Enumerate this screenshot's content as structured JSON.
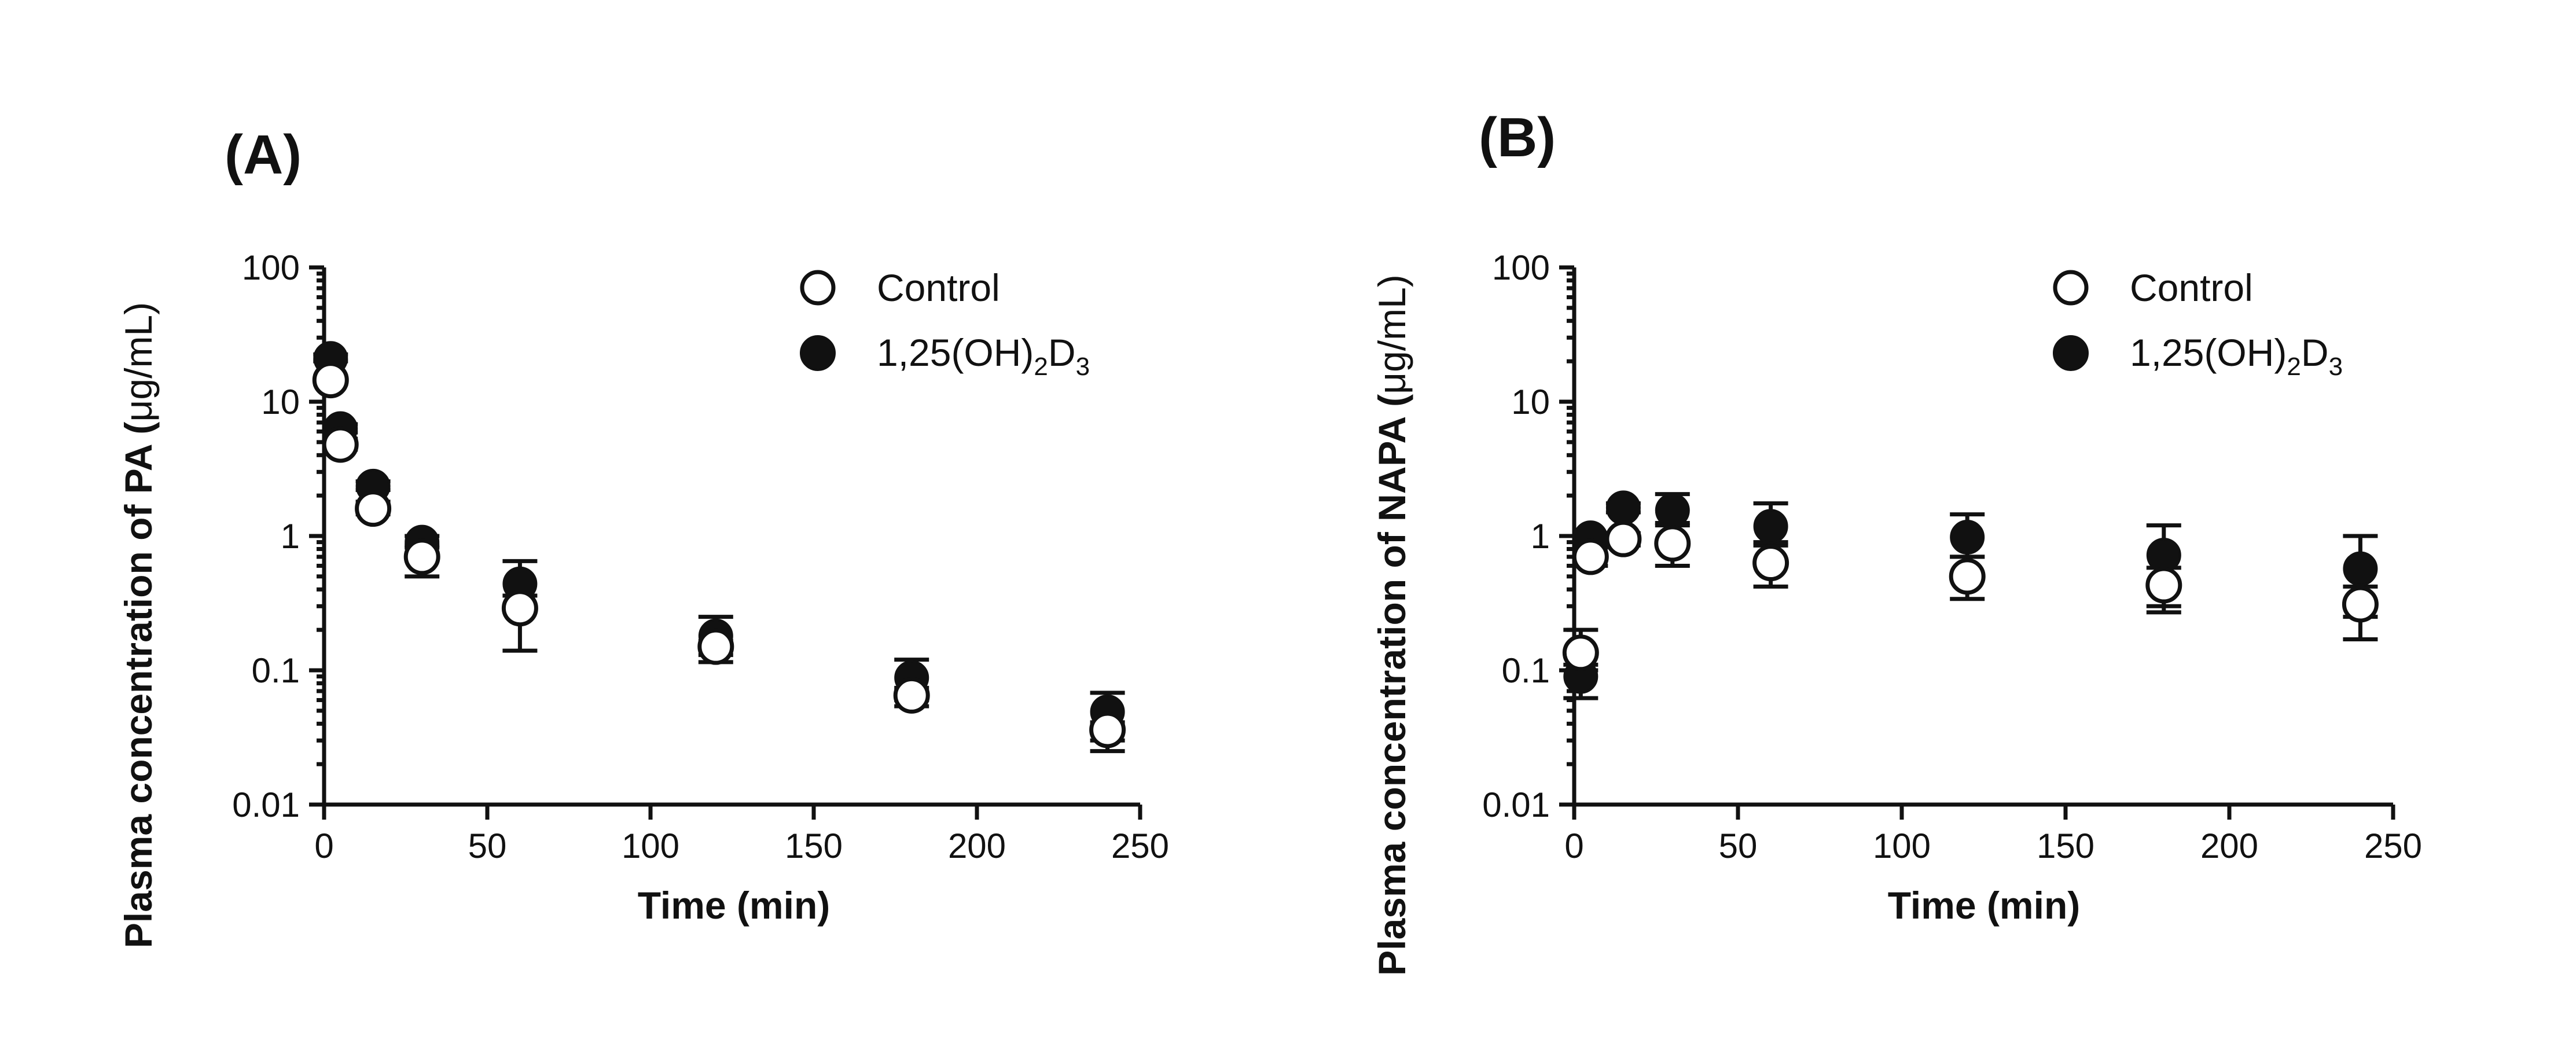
{
  "chart_data": [
    {
      "panel": "(A)",
      "type": "scatter",
      "yscale": "log",
      "xlabel": "Time (min)",
      "ylabel": "Plasma concentration of PA (",
      "ylabel_unit": "μg/mL)",
      "xlim": [
        0,
        250
      ],
      "ylim": [
        0.01,
        100
      ],
      "x_ticks": [
        "0",
        "50",
        "100",
        "150",
        "200",
        "250"
      ],
      "y_ticks": [
        "0.01",
        "0.1",
        "1",
        "10",
        "100"
      ],
      "legend_position": "top-right",
      "series": [
        {
          "name": "Control",
          "marker": "open-circle",
          "points": [
            {
              "x": 2,
              "y": 14.5,
              "err_low": 13.5,
              "err_high": 15.5
            },
            {
              "x": 5,
              "y": 4.8,
              "err_low": 4.4,
              "err_high": 5.3
            },
            {
              "x": 15,
              "y": 1.6,
              "err_low": 1.45,
              "err_high": 1.8
            },
            {
              "x": 30,
              "y": 0.7,
              "err_low": 0.5,
              "err_high": 0.85
            },
            {
              "x": 60,
              "y": 0.29,
              "err_low": 0.14,
              "err_high": 0.36
            },
            {
              "x": 120,
              "y": 0.15,
              "err_low": 0.115,
              "err_high": 0.165
            },
            {
              "x": 180,
              "y": 0.065,
              "err_low": 0.054,
              "err_high": 0.074
            },
            {
              "x": 240,
              "y": 0.036,
              "err_low": 0.025,
              "err_high": 0.041
            }
          ]
        },
        {
          "name": "1,25(OH)2D3",
          "marker": "filled-circle",
          "points": [
            {
              "x": 2,
              "y": 21,
              "err_low": 20,
              "err_high": 22.5
            },
            {
              "x": 5,
              "y": 6.3,
              "err_low": 5.9,
              "err_high": 6.8
            },
            {
              "x": 15,
              "y": 2.35,
              "err_low": 2.2,
              "err_high": 2.55
            },
            {
              "x": 30,
              "y": 0.9,
              "err_low": 0.82,
              "err_high": 1.0
            },
            {
              "x": 60,
              "y": 0.44,
              "err_low": 0.3,
              "err_high": 0.65
            },
            {
              "x": 120,
              "y": 0.18,
              "err_low": 0.13,
              "err_high": 0.25
            },
            {
              "x": 180,
              "y": 0.088,
              "err_low": 0.06,
              "err_high": 0.12
            },
            {
              "x": 240,
              "y": 0.049,
              "err_low": 0.03,
              "err_high": 0.068
            }
          ]
        }
      ]
    },
    {
      "panel": "(B)",
      "type": "scatter",
      "yscale": "log",
      "xlabel": "Time (min)",
      "ylabel": "Plasma concentration of NAPA (",
      "ylabel_unit": "μg/mL)",
      "xlim": [
        0,
        250
      ],
      "ylim": [
        0.01,
        100
      ],
      "x_ticks": [
        "0",
        "50",
        "100",
        "150",
        "200",
        "250"
      ],
      "y_ticks": [
        "0.01",
        "0.1",
        "1",
        "10",
        "100"
      ],
      "legend_position": "top-right",
      "series": [
        {
          "name": "Control",
          "marker": "open-circle",
          "points": [
            {
              "x": 2,
              "y": 0.135,
              "err_low": 0.1,
              "err_high": 0.2
            },
            {
              "x": 5,
              "y": 0.7,
              "err_low": 0.6,
              "err_high": 0.82
            },
            {
              "x": 15,
              "y": 0.95,
              "err_low": 0.85,
              "err_high": 1.05
            },
            {
              "x": 30,
              "y": 0.88,
              "err_low": 0.6,
              "err_high": 1.25
            },
            {
              "x": 60,
              "y": 0.63,
              "err_low": 0.42,
              "err_high": 0.9
            },
            {
              "x": 120,
              "y": 0.5,
              "err_low": 0.34,
              "err_high": 0.7
            },
            {
              "x": 180,
              "y": 0.43,
              "err_low": 0.27,
              "err_high": 0.58
            },
            {
              "x": 240,
              "y": 0.31,
              "err_low": 0.17,
              "err_high": 0.42
            }
          ]
        },
        {
          "name": "1,25(OH)2D3",
          "marker": "filled-circle",
          "points": [
            {
              "x": 2,
              "y": 0.09,
              "err_low": 0.062,
              "err_high": 0.11
            },
            {
              "x": 5,
              "y": 0.97,
              "err_low": 0.9,
              "err_high": 1.05
            },
            {
              "x": 15,
              "y": 1.62,
              "err_low": 1.5,
              "err_high": 1.75
            },
            {
              "x": 30,
              "y": 1.55,
              "err_low": 1.2,
              "err_high": 2.05
            },
            {
              "x": 60,
              "y": 1.18,
              "err_low": 0.85,
              "err_high": 1.75
            },
            {
              "x": 120,
              "y": 0.98,
              "err_low": 0.7,
              "err_high": 1.45
            },
            {
              "x": 180,
              "y": 0.72,
              "err_low": 0.3,
              "err_high": 1.2
            },
            {
              "x": 240,
              "y": 0.57,
              "err_low": 0.25,
              "err_high": 1.0
            }
          ]
        }
      ]
    }
  ],
  "legend": {
    "control": "Control",
    "treated_base": "1,25(OH)",
    "treated_sub1": "2",
    "treated_mid": "D",
    "treated_sub2": "3"
  }
}
